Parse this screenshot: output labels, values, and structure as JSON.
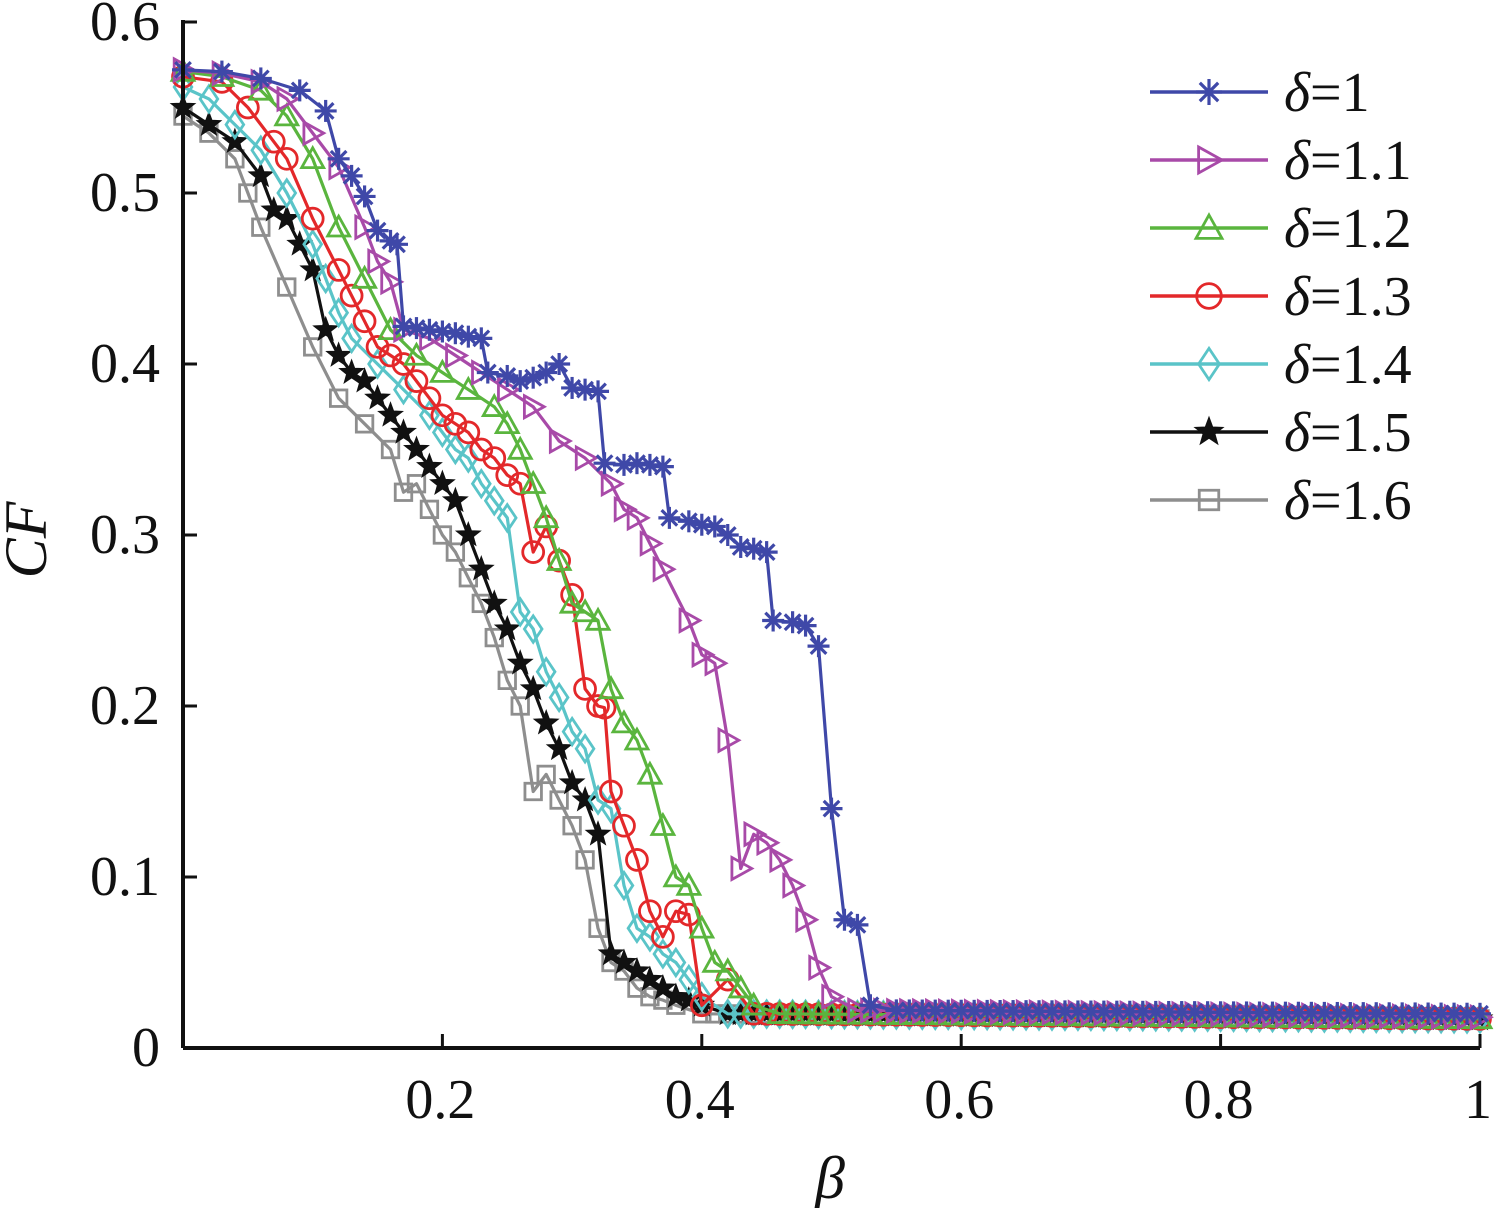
{
  "chart_data": {
    "type": "line",
    "title": "",
    "xlabel": "β",
    "ylabel": "CF",
    "xlim": [
      0,
      1
    ],
    "ylim": [
      0,
      0.6
    ],
    "x_ticks": [
      {
        "value": 0.2,
        "label": "0.2"
      },
      {
        "value": 0.4,
        "label": "0.4"
      },
      {
        "value": 0.6,
        "label": "0.6"
      },
      {
        "value": 0.8,
        "label": "0.8"
      },
      {
        "value": 1.0,
        "label": "1"
      }
    ],
    "y_ticks": [
      {
        "value": 0,
        "label": "0"
      },
      {
        "value": 0.1,
        "label": "0.1"
      },
      {
        "value": 0.2,
        "label": "0.2"
      },
      {
        "value": 0.3,
        "label": "0.3"
      },
      {
        "value": 0.4,
        "label": "0.4"
      },
      {
        "value": 0.5,
        "label": "0.5"
      },
      {
        "value": 0.6,
        "label": "0.6"
      }
    ],
    "grid": false,
    "legend_position": "top-right",
    "tail_value": 0.017,
    "series": [
      {
        "name": "δ=1",
        "symbol": "δ",
        "suffix": "=1",
        "color": "#3f48a8",
        "marker": "asterisk",
        "points": [
          [
            0,
            0.572
          ],
          [
            0.03,
            0.571
          ],
          [
            0.06,
            0.567
          ],
          [
            0.09,
            0.56
          ],
          [
            0.11,
            0.548
          ],
          [
            0.12,
            0.52
          ],
          [
            0.13,
            0.51
          ],
          [
            0.14,
            0.498
          ],
          [
            0.15,
            0.478
          ],
          [
            0.16,
            0.472
          ],
          [
            0.165,
            0.47
          ],
          [
            0.17,
            0.422
          ],
          [
            0.18,
            0.421
          ],
          [
            0.19,
            0.42
          ],
          [
            0.2,
            0.419
          ],
          [
            0.21,
            0.418
          ],
          [
            0.22,
            0.416
          ],
          [
            0.23,
            0.415
          ],
          [
            0.235,
            0.395
          ],
          [
            0.25,
            0.393
          ],
          [
            0.26,
            0.39
          ],
          [
            0.27,
            0.392
          ],
          [
            0.28,
            0.395
          ],
          [
            0.29,
            0.4
          ],
          [
            0.3,
            0.386
          ],
          [
            0.31,
            0.385
          ],
          [
            0.32,
            0.384
          ],
          [
            0.325,
            0.342
          ],
          [
            0.34,
            0.341
          ],
          [
            0.35,
            0.342
          ],
          [
            0.36,
            0.341
          ],
          [
            0.37,
            0.34
          ],
          [
            0.375,
            0.31
          ],
          [
            0.39,
            0.308
          ],
          [
            0.4,
            0.306
          ],
          [
            0.41,
            0.305
          ],
          [
            0.42,
            0.3
          ],
          [
            0.43,
            0.293
          ],
          [
            0.44,
            0.292
          ],
          [
            0.45,
            0.29
          ],
          [
            0.455,
            0.25
          ],
          [
            0.47,
            0.249
          ],
          [
            0.48,
            0.247
          ],
          [
            0.49,
            0.235
          ],
          [
            0.5,
            0.14
          ],
          [
            0.51,
            0.075
          ],
          [
            0.52,
            0.072
          ],
          [
            0.53,
            0.025
          ],
          [
            0.55,
            0.022
          ],
          [
            1.0,
            0.02
          ]
        ]
      },
      {
        "name": "δ=1.1",
        "symbol": "δ",
        "suffix": "=1.1",
        "color": "#a84aa8",
        "marker": "triangle-right",
        "points": [
          [
            0,
            0.572
          ],
          [
            0.03,
            0.57
          ],
          [
            0.06,
            0.565
          ],
          [
            0.08,
            0.555
          ],
          [
            0.1,
            0.535
          ],
          [
            0.12,
            0.515
          ],
          [
            0.14,
            0.48
          ],
          [
            0.15,
            0.46
          ],
          [
            0.16,
            0.448
          ],
          [
            0.17,
            0.42
          ],
          [
            0.19,
            0.415
          ],
          [
            0.21,
            0.405
          ],
          [
            0.23,
            0.395
          ],
          [
            0.25,
            0.385
          ],
          [
            0.27,
            0.375
          ],
          [
            0.29,
            0.355
          ],
          [
            0.31,
            0.345
          ],
          [
            0.33,
            0.33
          ],
          [
            0.34,
            0.315
          ],
          [
            0.35,
            0.31
          ],
          [
            0.36,
            0.295
          ],
          [
            0.37,
            0.28
          ],
          [
            0.39,
            0.25
          ],
          [
            0.4,
            0.23
          ],
          [
            0.41,
            0.225
          ],
          [
            0.42,
            0.18
          ],
          [
            0.43,
            0.105
          ],
          [
            0.44,
            0.125
          ],
          [
            0.45,
            0.12
          ],
          [
            0.46,
            0.11
          ],
          [
            0.47,
            0.095
          ],
          [
            0.48,
            0.075
          ],
          [
            0.49,
            0.047
          ],
          [
            0.5,
            0.03
          ],
          [
            0.52,
            0.022
          ],
          [
            1.0,
            0.018
          ]
        ]
      },
      {
        "name": "δ=1.2",
        "symbol": "δ",
        "suffix": "=1.2",
        "color": "#5ab53e",
        "marker": "triangle-up",
        "points": [
          [
            0,
            0.571
          ],
          [
            0.03,
            0.568
          ],
          [
            0.06,
            0.56
          ],
          [
            0.08,
            0.545
          ],
          [
            0.1,
            0.52
          ],
          [
            0.12,
            0.48
          ],
          [
            0.14,
            0.45
          ],
          [
            0.16,
            0.42
          ],
          [
            0.18,
            0.405
          ],
          [
            0.2,
            0.395
          ],
          [
            0.22,
            0.385
          ],
          [
            0.24,
            0.375
          ],
          [
            0.25,
            0.365
          ],
          [
            0.26,
            0.35
          ],
          [
            0.27,
            0.33
          ],
          [
            0.28,
            0.31
          ],
          [
            0.29,
            0.285
          ],
          [
            0.3,
            0.26
          ],
          [
            0.31,
            0.255
          ],
          [
            0.32,
            0.25
          ],
          [
            0.33,
            0.21
          ],
          [
            0.34,
            0.19
          ],
          [
            0.35,
            0.18
          ],
          [
            0.36,
            0.16
          ],
          [
            0.37,
            0.13
          ],
          [
            0.38,
            0.1
          ],
          [
            0.39,
            0.095
          ],
          [
            0.4,
            0.07
          ],
          [
            0.41,
            0.05
          ],
          [
            0.42,
            0.045
          ],
          [
            0.43,
            0.035
          ],
          [
            0.44,
            0.025
          ],
          [
            0.46,
            0.02
          ],
          [
            1.0,
            0.017
          ]
        ]
      },
      {
        "name": "δ=1.3",
        "symbol": "δ",
        "suffix": "=1.3",
        "color": "#e3282a",
        "marker": "circle",
        "points": [
          [
            0,
            0.568
          ],
          [
            0.03,
            0.565
          ],
          [
            0.05,
            0.55
          ],
          [
            0.07,
            0.53
          ],
          [
            0.08,
            0.52
          ],
          [
            0.1,
            0.485
          ],
          [
            0.12,
            0.455
          ],
          [
            0.13,
            0.44
          ],
          [
            0.14,
            0.425
          ],
          [
            0.15,
            0.41
          ],
          [
            0.16,
            0.405
          ],
          [
            0.17,
            0.4
          ],
          [
            0.18,
            0.39
          ],
          [
            0.19,
            0.38
          ],
          [
            0.2,
            0.37
          ],
          [
            0.21,
            0.365
          ],
          [
            0.22,
            0.36
          ],
          [
            0.23,
            0.35
          ],
          [
            0.24,
            0.345
          ],
          [
            0.25,
            0.335
          ],
          [
            0.26,
            0.33
          ],
          [
            0.27,
            0.29
          ],
          [
            0.28,
            0.305
          ],
          [
            0.29,
            0.285
          ],
          [
            0.3,
            0.265
          ],
          [
            0.31,
            0.21
          ],
          [
            0.32,
            0.2
          ],
          [
            0.325,
            0.199
          ],
          [
            0.33,
            0.15
          ],
          [
            0.34,
            0.13
          ],
          [
            0.35,
            0.11
          ],
          [
            0.36,
            0.08
          ],
          [
            0.37,
            0.065
          ],
          [
            0.38,
            0.08
          ],
          [
            0.39,
            0.078
          ],
          [
            0.4,
            0.025
          ],
          [
            0.42,
            0.04
          ],
          [
            0.44,
            0.02
          ],
          [
            1.0,
            0.017
          ]
        ]
      },
      {
        "name": "δ=1.4",
        "symbol": "δ",
        "suffix": "=1.4",
        "color": "#5ac4c8",
        "marker": "diamond",
        "points": [
          [
            0,
            0.562
          ],
          [
            0.02,
            0.555
          ],
          [
            0.04,
            0.54
          ],
          [
            0.06,
            0.525
          ],
          [
            0.08,
            0.5
          ],
          [
            0.1,
            0.47
          ],
          [
            0.11,
            0.45
          ],
          [
            0.12,
            0.43
          ],
          [
            0.13,
            0.415
          ],
          [
            0.15,
            0.4
          ],
          [
            0.17,
            0.385
          ],
          [
            0.19,
            0.37
          ],
          [
            0.2,
            0.36
          ],
          [
            0.21,
            0.35
          ],
          [
            0.22,
            0.345
          ],
          [
            0.23,
            0.33
          ],
          [
            0.24,
            0.32
          ],
          [
            0.25,
            0.31
          ],
          [
            0.26,
            0.255
          ],
          [
            0.27,
            0.245
          ],
          [
            0.28,
            0.22
          ],
          [
            0.29,
            0.205
          ],
          [
            0.3,
            0.185
          ],
          [
            0.31,
            0.175
          ],
          [
            0.32,
            0.145
          ],
          [
            0.33,
            0.14
          ],
          [
            0.34,
            0.095
          ],
          [
            0.35,
            0.07
          ],
          [
            0.36,
            0.065
          ],
          [
            0.37,
            0.055
          ],
          [
            0.38,
            0.05
          ],
          [
            0.39,
            0.04
          ],
          [
            0.4,
            0.03
          ],
          [
            0.42,
            0.02
          ],
          [
            1.0,
            0.017
          ]
        ]
      },
      {
        "name": "δ=1.5",
        "symbol": "δ",
        "suffix": "=1.5",
        "color": "#111111",
        "marker": "star",
        "points": [
          [
            0,
            0.55
          ],
          [
            0.02,
            0.54
          ],
          [
            0.04,
            0.53
          ],
          [
            0.06,
            0.51
          ],
          [
            0.07,
            0.49
          ],
          [
            0.08,
            0.485
          ],
          [
            0.09,
            0.47
          ],
          [
            0.1,
            0.455
          ],
          [
            0.11,
            0.42
          ],
          [
            0.12,
            0.405
          ],
          [
            0.13,
            0.395
          ],
          [
            0.14,
            0.39
          ],
          [
            0.15,
            0.38
          ],
          [
            0.16,
            0.37
          ],
          [
            0.17,
            0.36
          ],
          [
            0.18,
            0.35
          ],
          [
            0.19,
            0.34
          ],
          [
            0.2,
            0.33
          ],
          [
            0.21,
            0.32
          ],
          [
            0.22,
            0.3
          ],
          [
            0.23,
            0.28
          ],
          [
            0.24,
            0.26
          ],
          [
            0.25,
            0.245
          ],
          [
            0.26,
            0.225
          ],
          [
            0.27,
            0.21
          ],
          [
            0.28,
            0.19
          ],
          [
            0.29,
            0.175
          ],
          [
            0.3,
            0.155
          ],
          [
            0.31,
            0.145
          ],
          [
            0.32,
            0.125
          ],
          [
            0.33,
            0.055
          ],
          [
            0.34,
            0.05
          ],
          [
            0.35,
            0.045
          ],
          [
            0.36,
            0.04
          ],
          [
            0.37,
            0.035
          ],
          [
            0.38,
            0.03
          ],
          [
            0.39,
            0.028
          ],
          [
            0.4,
            0.025
          ],
          [
            0.42,
            0.02
          ],
          [
            1.0,
            0.017
          ]
        ]
      },
      {
        "name": "δ=1.6",
        "symbol": "δ",
        "suffix": "=1.6",
        "color": "#8e8e8e",
        "marker": "square",
        "points": [
          [
            0,
            0.545
          ],
          [
            0.02,
            0.535
          ],
          [
            0.04,
            0.52
          ],
          [
            0.05,
            0.5
          ],
          [
            0.06,
            0.48
          ],
          [
            0.08,
            0.445
          ],
          [
            0.1,
            0.41
          ],
          [
            0.12,
            0.38
          ],
          [
            0.14,
            0.365
          ],
          [
            0.16,
            0.35
          ],
          [
            0.17,
            0.325
          ],
          [
            0.18,
            0.33
          ],
          [
            0.19,
            0.315
          ],
          [
            0.2,
            0.3
          ],
          [
            0.21,
            0.29
          ],
          [
            0.22,
            0.275
          ],
          [
            0.23,
            0.26
          ],
          [
            0.24,
            0.24
          ],
          [
            0.25,
            0.215
          ],
          [
            0.26,
            0.2
          ],
          [
            0.27,
            0.15
          ],
          [
            0.28,
            0.16
          ],
          [
            0.29,
            0.145
          ],
          [
            0.3,
            0.13
          ],
          [
            0.31,
            0.11
          ],
          [
            0.32,
            0.07
          ],
          [
            0.33,
            0.05
          ],
          [
            0.34,
            0.045
          ],
          [
            0.35,
            0.035
          ],
          [
            0.36,
            0.03
          ],
          [
            0.37,
            0.028
          ],
          [
            0.38,
            0.025
          ],
          [
            0.4,
            0.02
          ],
          [
            1.0,
            0.017
          ]
        ]
      }
    ]
  }
}
